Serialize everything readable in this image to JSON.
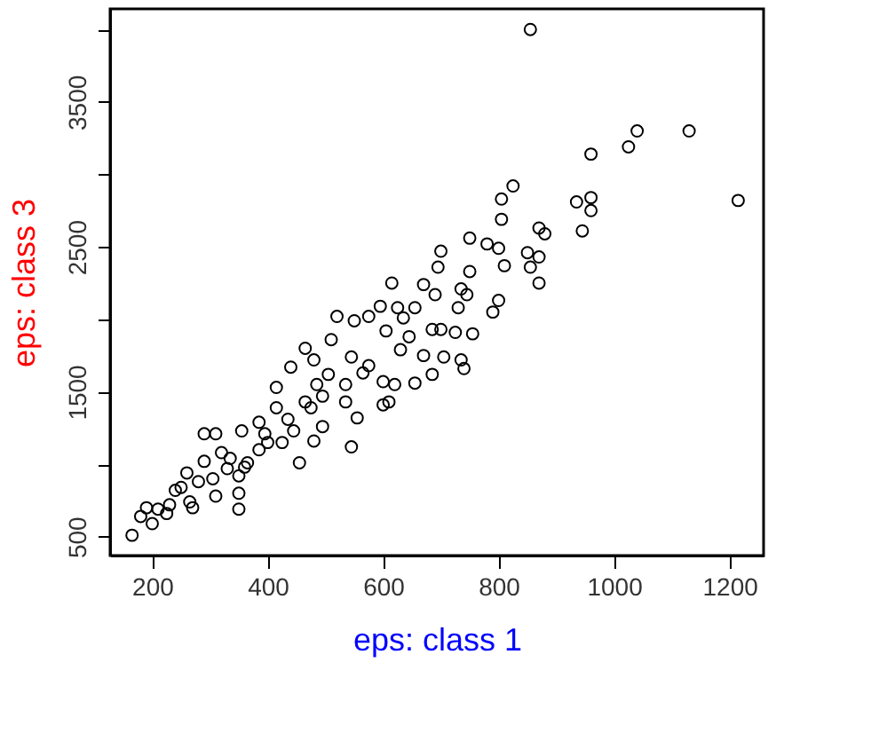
{
  "chart_data": {
    "type": "scatter",
    "xlabel": "eps: class 1",
    "ylabel": "eps: class 3",
    "marker": "circle",
    "grid": false,
    "xlim": [
      127,
      1259
    ],
    "ylim": [
      370,
      4142
    ],
    "xticks": [
      200,
      400,
      600,
      800,
      1000,
      1200
    ],
    "yticks": [
      500,
      {
        "value": 1000,
        "label": null
      },
      1500,
      {
        "value": 2000,
        "label": null
      },
      2500,
      {
        "value": 3000,
        "label": null
      },
      3500,
      {
        "value": 4000,
        "label": null
      }
    ],
    "series": [
      {
        "color": "#000000",
        "x": [
          855,
          1040,
          1130,
          1025,
          960,
          1215,
          825,
          805,
          935,
          960,
          960,
          805,
          870,
          880,
          945,
          750,
          780,
          800,
          850,
          870,
          700,
          810,
          855,
          870,
          695,
          750,
          615,
          670,
          735,
          745,
          800,
          790,
          730,
          690,
          595,
          625,
          655,
          635,
          520,
          575,
          550,
          685,
          700,
          755,
          725,
          645,
          605,
          510,
          465,
          480,
          630,
          670,
          705,
          735,
          740,
          685,
          655,
          620,
          545,
          575,
          600,
          565,
          535,
          505,
          440,
          415,
          485,
          495,
          465,
          535,
          555,
          600,
          610,
          545,
          455,
          480,
          495,
          435,
          415,
          385,
          355,
          310,
          290,
          385,
          365,
          335,
          400,
          425,
          350,
          350,
          350,
          310,
          280,
          260,
          290,
          330,
          240,
          265,
          225,
          210,
          190,
          180,
          165,
          230,
          250,
          305,
          320,
          360,
          445,
          475,
          395,
          270,
          200
        ],
        "values": [
          4000,
          3300,
          3300,
          3190,
          3140,
          2820,
          2920,
          2830,
          2810,
          2840,
          2750,
          2690,
          2630,
          2590,
          2610,
          2560,
          2520,
          2490,
          2460,
          2430,
          2470,
          2370,
          2360,
          2250,
          2360,
          2330,
          2250,
          2240,
          2210,
          2170,
          2130,
          2050,
          2080,
          2170,
          2090,
          2080,
          2080,
          2010,
          2020,
          2020,
          1990,
          1930,
          1930,
          1900,
          1910,
          1880,
          1920,
          1860,
          1800,
          1720,
          1790,
          1750,
          1740,
          1720,
          1660,
          1620,
          1560,
          1550,
          1740,
          1680,
          1570,
          1630,
          1550,
          1620,
          1670,
          1530,
          1550,
          1470,
          1430,
          1430,
          1320,
          1410,
          1430,
          1120,
          1010,
          1160,
          1260,
          1310,
          1390,
          1290,
          1230,
          1210,
          1210,
          1100,
          1010,
          1040,
          1150,
          1150,
          920,
          800,
          690,
          780,
          880,
          940,
          1020,
          970,
          820,
          740,
          660,
          690,
          700,
          640,
          510,
          720,
          840,
          900,
          1080,
          980,
          1230,
          1390,
          1210,
          700,
          590
        ]
      }
    ]
  }
}
